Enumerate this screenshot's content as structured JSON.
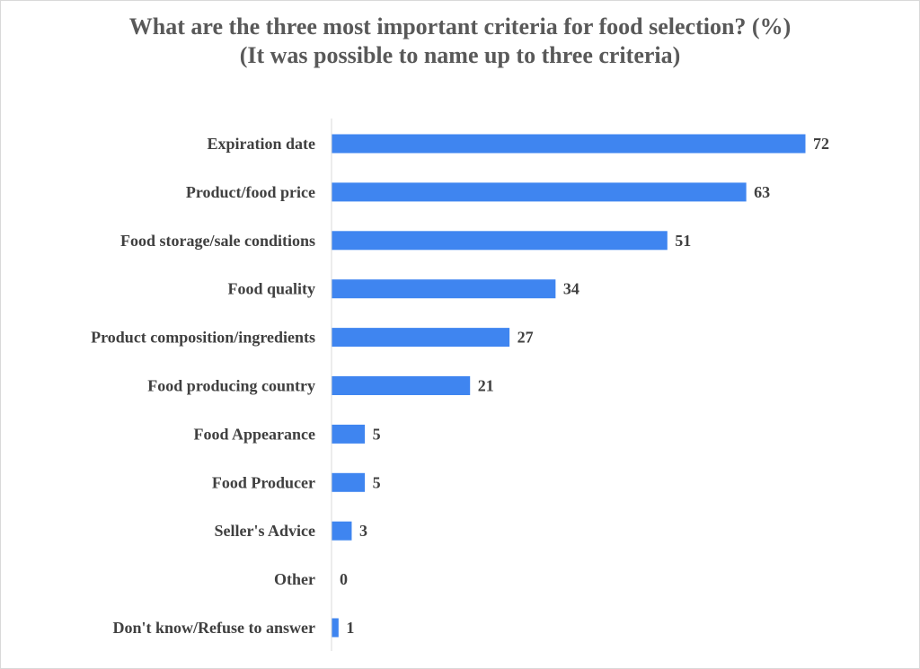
{
  "chart_data": {
    "type": "bar",
    "orientation": "horizontal",
    "title": "What are the three most important criteria for food selection? (%)",
    "subtitle": "(It was possible to name up to three criteria)",
    "categories": [
      "Expiration date",
      "Product/food price",
      "Food storage/sale conditions",
      "Food quality",
      "Product composition/ingredients",
      "Food producing country",
      "Food Appearance",
      "Food Producer",
      "Seller's Advice",
      "Other",
      "Don't know/Refuse to answer"
    ],
    "values": [
      72,
      63,
      51,
      34,
      27,
      21,
      5,
      5,
      3,
      0,
      1
    ],
    "xlim": [
      0,
      80
    ],
    "grid": false,
    "legend": "none",
    "bar_color": "#3f85f0"
  }
}
